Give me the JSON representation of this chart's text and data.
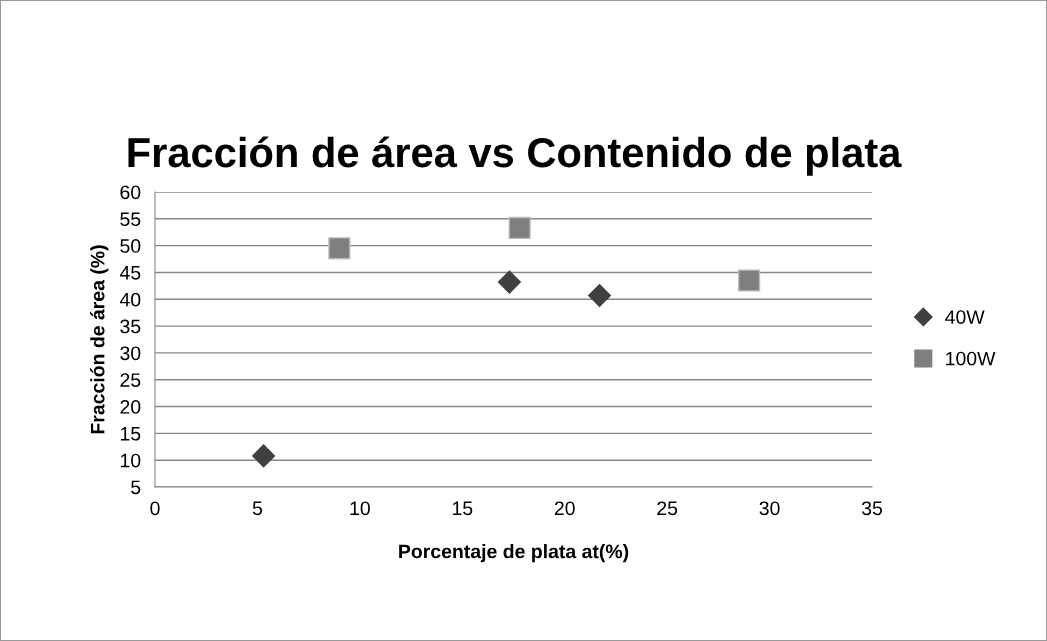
{
  "chart_data": {
    "type": "scatter",
    "title": "Fracción de área vs Contenido de plata",
    "xlabel": "Porcentaje de plata at(%)",
    "ylabel": "Fracción de área (%)",
    "xlim": [
      0,
      35
    ],
    "xticks": [
      0,
      5,
      10,
      15,
      20,
      25,
      30,
      35
    ],
    "ylim": [
      5,
      60
    ],
    "yticks": [
      5,
      10,
      15,
      20,
      25,
      30,
      35,
      40,
      45,
      50,
      55,
      60
    ],
    "grid": "y",
    "legend": "right",
    "series": [
      {
        "name": "40W",
        "color": "#404040",
        "marker": "diamond",
        "x": [
          5.3,
          17.3,
          21.7
        ],
        "values": [
          10.8,
          43.2,
          40.7
        ]
      },
      {
        "name": "100W",
        "color": "#7f7f7f",
        "marker": "square",
        "x": [
          9.0,
          17.8,
          29.0
        ],
        "values": [
          49.5,
          53.3,
          43.5
        ]
      }
    ]
  }
}
